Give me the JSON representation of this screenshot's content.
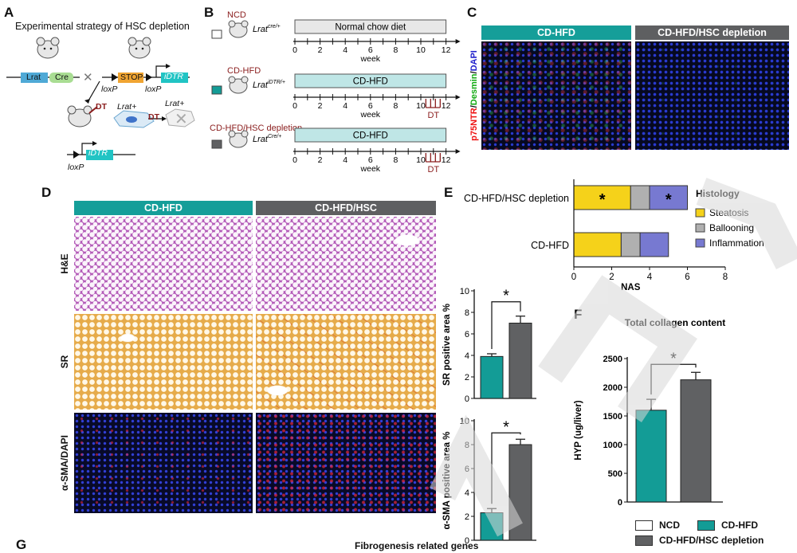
{
  "panels": {
    "A": {
      "label": "A",
      "title": "Experimental strategy of HSC depletion",
      "gene_lrat": "Lrat",
      "gene_cre": "Cre",
      "stop": "STOP",
      "loxp1": "loxP",
      "loxp2": "loxP",
      "idtr1": "iDTR",
      "dt1": "DT",
      "dt2": "DT",
      "lrat_pos1": "Lrat+",
      "lrat_pos2": "Lrat+",
      "idtr2": "iDTR",
      "loxp3": "loxP"
    },
    "B": {
      "label": "B",
      "groups": [
        {
          "name": "NCD",
          "genotype": "Lrat",
          "sup": "cre/+",
          "bar": "Normal chow diet",
          "dt": ""
        },
        {
          "name": "CD-HFD",
          "genotype": "Lrat",
          "sup": "iDTR/+",
          "bar": "CD-HFD",
          "dt": "DT"
        },
        {
          "name": "CD-HFD/HSC depletion",
          "genotype": "Lrat",
          "sup": "Cre/+",
          "bar": "CD-HFD",
          "dt": "DT"
        }
      ],
      "ticks": [
        "0",
        "2",
        "4",
        "6",
        "8",
        "10",
        "12"
      ],
      "axis_label": "week"
    },
    "C": {
      "label": "C",
      "col1": "CD-HFD",
      "col2": "CD-HFD/HSC depletion",
      "stain_red": "p75NTR",
      "stain_sep1": "/",
      "stain_green": "Desmin",
      "stain_sep2": "/",
      "stain_blue": "DAPI"
    },
    "D": {
      "label": "D",
      "col1": "CD-HFD",
      "col2": "CD-HFD/HSC",
      "rows": [
        "H&E",
        "SR",
        "α-SMA/DAPI"
      ]
    },
    "E": {
      "label": "E"
    },
    "F": {
      "label": "F"
    },
    "G": {
      "label": "G",
      "title": "Fibrogenesis related genes"
    }
  },
  "legend_bottom": {
    "items": [
      {
        "label": "NCD",
        "color": "#ffffff"
      },
      {
        "label": "CD-HFD",
        "color": "#139c96"
      },
      {
        "label": "CD-HFD/HSC depletion",
        "color": "#606163"
      }
    ]
  },
  "chart_data": [
    {
      "type": "bar",
      "orientation": "horizontal-stacked",
      "categories": [
        "CD-HFD/HSC depletion",
        "CD-HFD"
      ],
      "series": [
        {
          "name": "Steatosis",
          "values": [
            3.0,
            2.5
          ],
          "color": "#f5d21a"
        },
        {
          "name": "Ballooning",
          "values": [
            1.0,
            1.0
          ],
          "color": "#b0b0b0"
        },
        {
          "name": "Inflammation",
          "values": [
            2.0,
            1.5
          ],
          "color": "#7779d1"
        }
      ],
      "annotations": [
        "*",
        "*"
      ],
      "legend_title": "Histology",
      "xlabel": "NAS",
      "xlim": [
        0,
        8
      ],
      "xticks": [
        "0",
        "2",
        "4",
        "6",
        "8"
      ]
    },
    {
      "type": "bar",
      "categories": [
        "CD-HFD",
        "CD-HFD/HSC depletion"
      ],
      "values": [
        3.9,
        7.0
      ],
      "errors": [
        0.25,
        0.65
      ],
      "colors": [
        "#139c96",
        "#606163"
      ],
      "ylabel": "SR positive area %",
      "ylim": [
        0,
        10
      ],
      "yticks": [
        "0",
        "2",
        "4",
        "6",
        "8",
        "10"
      ],
      "significance": "*"
    },
    {
      "type": "bar",
      "categories": [
        "CD-HFD",
        "CD-HFD/HSC depletion"
      ],
      "values": [
        2.3,
        8.0
      ],
      "errors": [
        0.35,
        0.45
      ],
      "colors": [
        "#139c96",
        "#606163"
      ],
      "ylabel": "α-SMA positive area %",
      "ylim": [
        0,
        10
      ],
      "yticks": [
        "0",
        "2",
        "4",
        "6",
        "8",
        "10"
      ],
      "significance": "*"
    },
    {
      "type": "bar",
      "title": "Total collagen content",
      "categories": [
        "CD-HFD",
        "CD-HFD/HSC depletion"
      ],
      "values": [
        1600,
        2130
      ],
      "errors": [
        190,
        130
      ],
      "colors": [
        "#139c96",
        "#606163"
      ],
      "ylabel": "HYP (ug/liver)",
      "ylim": [
        0,
        2500
      ],
      "yticks": [
        "0",
        "500",
        "1000",
        "1500",
        "2000",
        "2500"
      ],
      "significance": "*"
    }
  ]
}
